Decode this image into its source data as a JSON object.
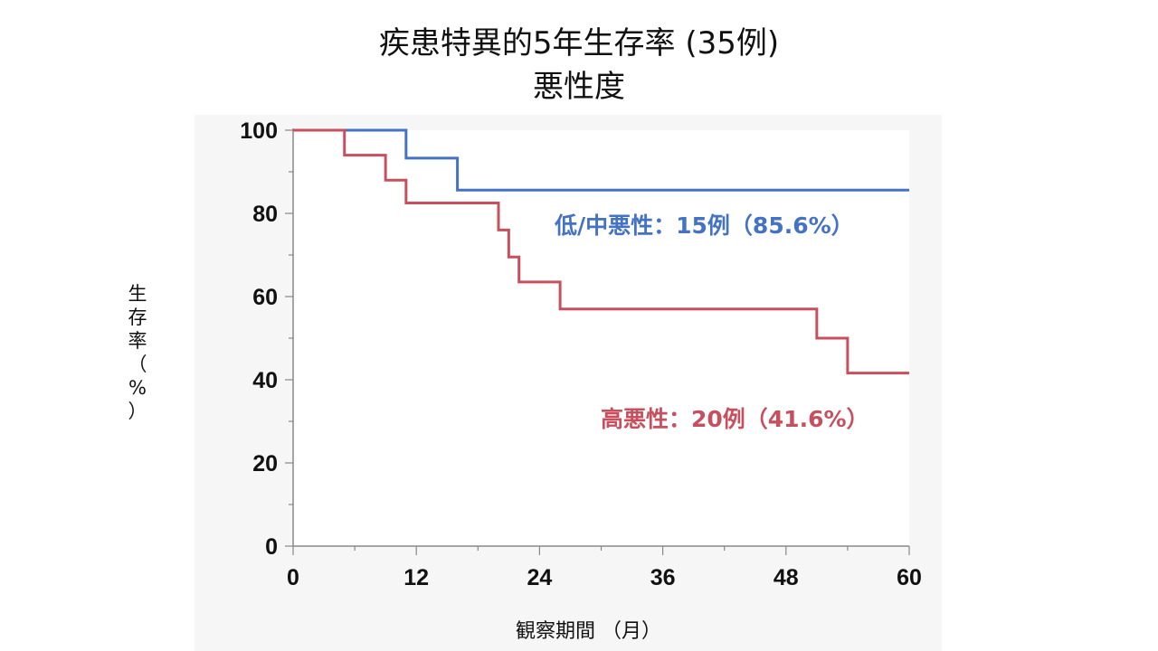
{
  "chart_data": {
    "type": "line",
    "step": true,
    "title": "疾患特異的5年生存率 (35例)",
    "subtitle": "悪性度",
    "xlabel": "観察期間 （月）",
    "ylabel": "生存率（%）",
    "xlim": [
      0,
      60
    ],
    "ylim": [
      0,
      100
    ],
    "xticks": [
      0,
      12,
      24,
      36,
      48,
      60
    ],
    "yticks": [
      0,
      20,
      40,
      60,
      80,
      100
    ],
    "grid": false,
    "series": [
      {
        "name": "低/中悪性",
        "label": "低/中悪性：15例（85.6%）",
        "color": "#4472C4",
        "x": [
          0,
          11,
          16,
          60
        ],
        "y": [
          100,
          93.3,
          85.6,
          85.6
        ]
      },
      {
        "name": "高悪性",
        "label": "高悪性：20例（41.6%）",
        "color": "#C8505E",
        "x": [
          0,
          5,
          9,
          11,
          20,
          21,
          22,
          26,
          51,
          54,
          60
        ],
        "y": [
          100,
          94,
          88,
          82.5,
          76,
          69.5,
          63.5,
          57,
          50,
          41.6,
          41.6
        ]
      }
    ]
  }
}
